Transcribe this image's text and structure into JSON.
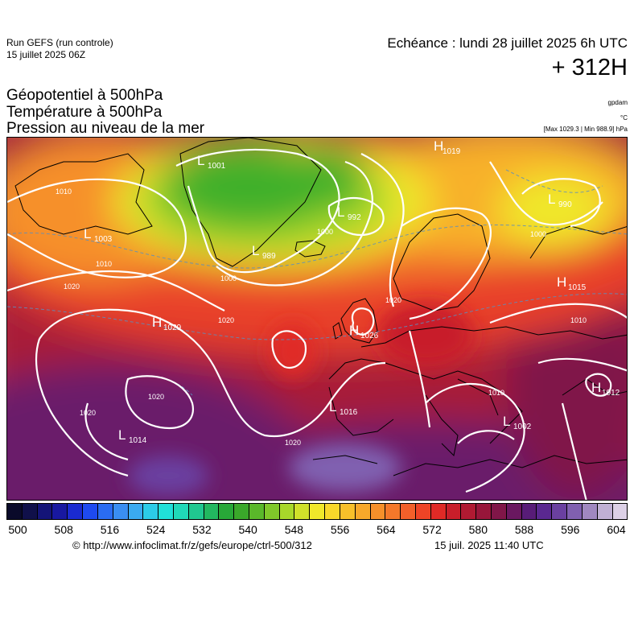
{
  "header": {
    "run_title": "Run GEFS (run controle)",
    "run_date": "15 juillet 2025 06Z",
    "echeance": "Echéance : lundi 28 juillet 2025 6h UTC",
    "lead_time": "+ 312H"
  },
  "variables": [
    "Géopotentiel à 500hPa",
    "Température à 500hPa",
    "Pression au niveau de la mer"
  ],
  "units": {
    "geopotential": "gpdam",
    "temperature": "°C",
    "max_min": "[Max 1029.3 | Min 988.9] hPa"
  },
  "pressure_centers": [
    {
      "type": "L",
      "value": "1001"
    },
    {
      "type": "H",
      "value": "1019"
    },
    {
      "type": "L",
      "value": "992"
    },
    {
      "type": "L",
      "value": "990"
    },
    {
      "type": "L",
      "value": "1003"
    },
    {
      "type": "L",
      "value": "989"
    },
    {
      "type": "H",
      "value": "1015"
    },
    {
      "type": "H",
      "value": "1029"
    },
    {
      "type": "H",
      "value": "1026"
    },
    {
      "type": "L",
      "value": "1016"
    },
    {
      "type": "L",
      "value": "1014"
    },
    {
      "type": "L",
      "value": "1002"
    },
    {
      "type": "H",
      "value": "1012"
    }
  ],
  "isobar_labels": [
    "1010",
    "1010",
    "1020",
    "1020",
    "1000",
    "1000",
    "1020",
    "1020",
    "1020",
    "1020",
    "1010",
    "1010",
    "1000"
  ],
  "colorbar": {
    "colors": [
      "#0a0a2a",
      "#10104a",
      "#141478",
      "#1818a0",
      "#1a2ad0",
      "#1e4af0",
      "#2a6cf2",
      "#3a8ef2",
      "#3aaaf0",
      "#2ccce8",
      "#20e0d8",
      "#20d8b8",
      "#20c890",
      "#22b860",
      "#28a838",
      "#3aa82a",
      "#5ab82a",
      "#80c82a",
      "#a8d82a",
      "#d0e02a",
      "#f0e82a",
      "#f8d82a",
      "#f8c02a",
      "#f8a82a",
      "#f6902a",
      "#f4782a",
      "#f2602a",
      "#ee4426",
      "#e02a26",
      "#c81e2a",
      "#b01a32",
      "#98163a",
      "#801648",
      "#6a1860",
      "#581c78",
      "#5a2890",
      "#6a40a0",
      "#8060b0",
      "#a088c0",
      "#c0b0d4",
      "#dcd0e6"
    ],
    "tick_labels": [
      "500",
      "508",
      "516",
      "524",
      "532",
      "540",
      "548",
      "556",
      "564",
      "572",
      "580",
      "588",
      "596",
      "604"
    ]
  },
  "credit": {
    "url": "© http://www.infoclimat.fr/z/gefs/europe/ctrl-500/312",
    "generated": "15 juil. 2025 11:40 UTC"
  }
}
